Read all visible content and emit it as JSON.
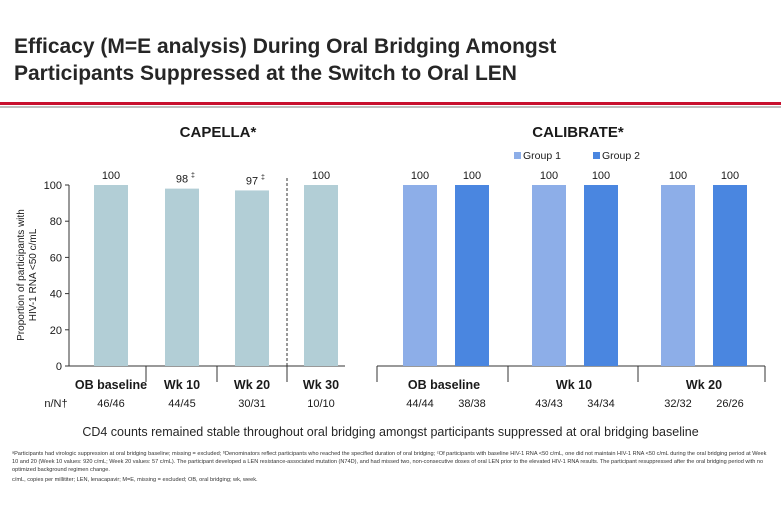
{
  "slide": {
    "title_line1": "Efficacy (M=E analysis) During Oral Bridging Amongst",
    "title_line2": "Participants Suppressed at the Switch to Oral LEN",
    "stable_note": "CD4 counts remained stable throughout oral bridging amongst participants suppressed at oral bridging baseline",
    "footnote": "ᵃParticipants had virologic suppression at oral bridging baseline; missing = excluded; ᵇDenominators reflect participants who reached the specified duration of oral bridging; ᶜOf participants with baseline HIV-1 RNA <50 c/mL, one did not maintain HIV-1 RNA <50 c/mL during the oral bridging period at Week 10 and 20 (Week 10 values: 920 c/mL; Week 20 values: 57 c/mL). The participant developed a LEN resistance-associated mutation (N74D), and had missed two, non-consecutive doses of oral LEN prior to the elevated HIV-1 RNA results. The participant resuppressed after the oral bridging period with no optimized background regimen change.",
    "abbreviations": "c/mL, copies per millititer; LEN, lenacapavir; M=E, missing = excluded; OB, oral bridging; wk, week."
  },
  "chart_data": [
    {
      "type": "bar",
      "title": "CAPELLA*",
      "ylabel": "Proportion of participants with HIV-1 RNA <50 c/mL",
      "ylabel_line1": "Proportion of participants with",
      "ylabel_line2": "HIV-1 RNA <50 c/mL",
      "ylim": [
        0,
        100
      ],
      "yticks": [
        "0",
        "20",
        "40",
        "60",
        "80",
        "100"
      ],
      "yticks_values": [
        0,
        20,
        40,
        60,
        80,
        100
      ],
      "categories": [
        "OB baseline",
        "Wk 10",
        "Wk 20",
        "Wk 30"
      ],
      "values": [
        100,
        98,
        97,
        100
      ],
      "value_labels": [
        "100",
        "98",
        "97",
        "100"
      ],
      "value_marks": [
        "",
        "‡",
        "‡",
        ""
      ],
      "n_label": "n/N†",
      "n_values": [
        "46/46",
        "44/45",
        "30/31",
        "10/10"
      ],
      "color": "#b2ced6",
      "divider_after_index": 2
    },
    {
      "type": "bar",
      "title": "CALIBRATE*",
      "ylim": [
        0,
        100
      ],
      "categories": [
        "OB baseline",
        "Wk 10",
        "Wk 20"
      ],
      "series": [
        {
          "name": "Group 1",
          "values": [
            100,
            100,
            100
          ],
          "value_labels": [
            "100",
            "100",
            "100"
          ],
          "n_values": [
            "44/44",
            "43/43",
            "32/32"
          ],
          "color": "#8daee8"
        },
        {
          "name": "Group 2",
          "values": [
            100,
            100,
            100
          ],
          "value_labels": [
            "100",
            "100",
            "100"
          ],
          "n_values": [
            "38/38",
            "34/34",
            "26/26"
          ],
          "color": "#4a86e0"
        }
      ],
      "legend": [
        "Group 1",
        "Group 2"
      ],
      "legend_position": "top-right"
    }
  ]
}
